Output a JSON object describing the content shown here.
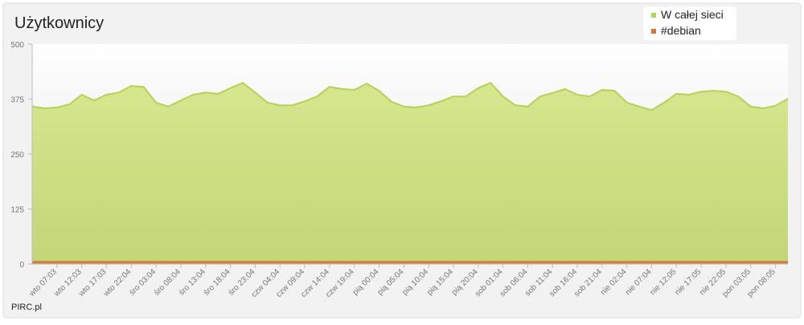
{
  "chart_data": {
    "type": "area",
    "title": "Użytkownicy",
    "source": "PIRC.pl",
    "categories": [
      null,
      null,
      "wto 07:03",
      null,
      "wto 12:03",
      null,
      "wto 17:03",
      null,
      "wto 22:04",
      null,
      "śro 03:04",
      null,
      "śro 08:04",
      null,
      "śro 13:04",
      null,
      "śro 18:04",
      null,
      "śro 23:04",
      null,
      "czw 04:04",
      null,
      "czw 09:04",
      null,
      "czw 14:04",
      null,
      "czw 19:04",
      null,
      "pią 00:04",
      null,
      "pią 05:04",
      null,
      "pią 10:04",
      null,
      "pią 15:04",
      null,
      "pią 20:04",
      null,
      "sob 01:04",
      null,
      "sob 06:04",
      null,
      "sob 11:04",
      null,
      "sob 16:04",
      null,
      "sob 21:04",
      null,
      "nie 02:04",
      null,
      "nie 07:04",
      null,
      "nie 12:05",
      null,
      "nie 17:05",
      null,
      "nie 22:05",
      null,
      "pon 03:05",
      null,
      "pon 08:05",
      null
    ],
    "series": [
      {
        "name": "W całej sieci",
        "color": "#b5d156",
        "values": [
          358,
          354,
          356,
          363,
          385,
          372,
          385,
          390,
          405,
          403,
          367,
          358,
          372,
          385,
          390,
          387,
          400,
          412,
          390,
          367,
          361,
          361,
          370,
          381,
          403,
          398,
          396,
          410,
          394,
          369,
          358,
          356,
          361,
          370,
          381,
          381,
          400,
          412,
          381,
          361,
          358,
          381,
          389,
          398,
          385,
          381,
          396,
          394,
          367,
          358,
          350,
          367,
          387,
          385,
          392,
          394,
          392,
          381,
          358,
          354,
          360,
          376
        ]
      },
      {
        "name": "#debian",
        "color": "#d9773a",
        "values": [
          5,
          5,
          5,
          5,
          5,
          5,
          5,
          5,
          5,
          5,
          5,
          5,
          5,
          5,
          5,
          5,
          5,
          5,
          5,
          5,
          5,
          5,
          5,
          5,
          5,
          5,
          5,
          5,
          5,
          5,
          5,
          5,
          5,
          5,
          5,
          5,
          5,
          5,
          5,
          5,
          5,
          5,
          5,
          5,
          5,
          5,
          5,
          5,
          5,
          5,
          5,
          5,
          5,
          5,
          5,
          5,
          5,
          5,
          5,
          5,
          5,
          5
        ]
      }
    ],
    "ylim": [
      0,
      500
    ],
    "yticks": [
      0,
      125,
      250,
      375,
      500
    ],
    "grid": false,
    "legend": "top-right"
  }
}
